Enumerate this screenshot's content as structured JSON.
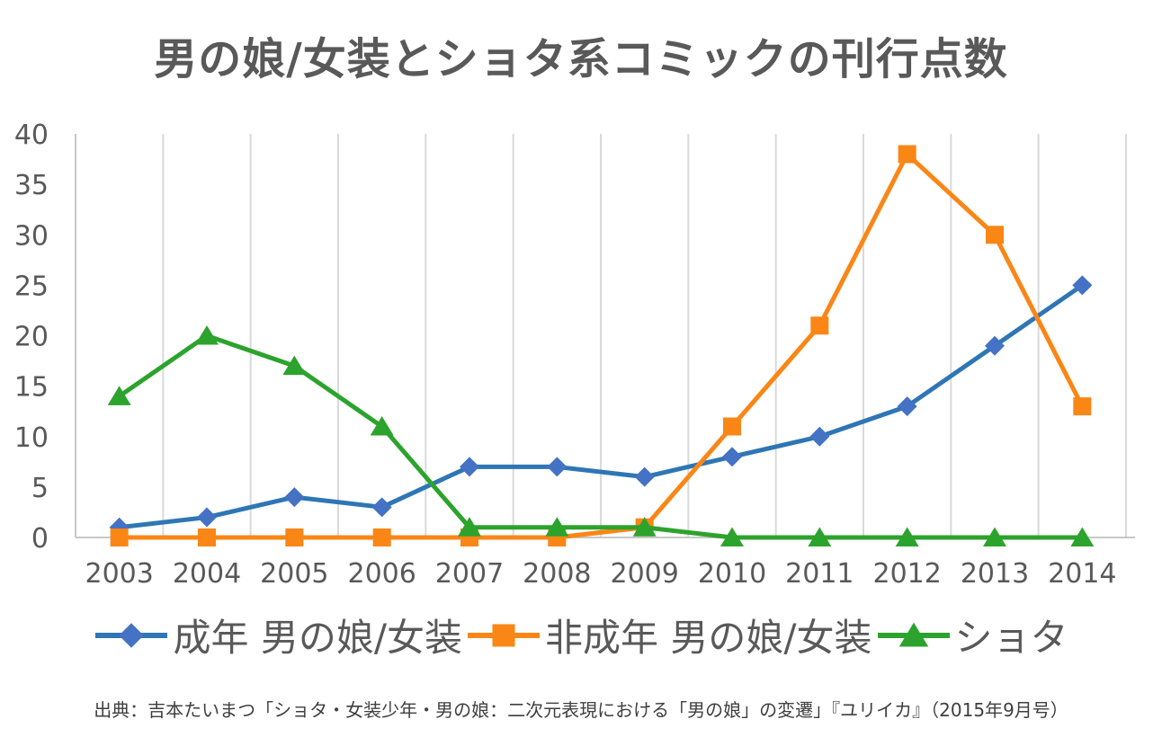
{
  "title": "男の娘/女装とショタ系コミックの刊行点数",
  "source": "出典：吉本たいまつ「ショタ・女装少年・男の娘：二次元表現における「男の娘」の変遷」『ユリイカ』（2015年9月号）",
  "colors": {
    "background": "#FFFFFF",
    "grid": "#D9D9D9",
    "axis": "#C8C8C8",
    "tick_text": "#595959",
    "title_text": "#595959",
    "legend_text": "#595959",
    "source_text": "#3F3F3F",
    "series_blue_line": "#2E76B4",
    "series_blue_marker": "#4472C4",
    "series_orange": "#FA8616",
    "series_green": "#2CA32C"
  },
  "chart_data": {
    "type": "line",
    "title": "男の娘/女装とショタ系コミックの刊行点数",
    "categories": [
      "2003",
      "2004",
      "2005",
      "2006",
      "2007",
      "2008",
      "2009",
      "2010",
      "2011",
      "2012",
      "2013",
      "2014"
    ],
    "y_ticks": [
      0,
      5,
      10,
      15,
      20,
      25,
      30,
      35,
      40
    ],
    "ylim": [
      0,
      40
    ],
    "xlabel": "",
    "ylabel": "",
    "grid": "vertical-only",
    "legend_position": "bottom",
    "series": [
      {
        "name": "成年 男の娘/女装",
        "marker": "diamond",
        "line_color": "#2E76B4",
        "marker_color": "#4472C4",
        "values": [
          1,
          2,
          4,
          3,
          7,
          7,
          6,
          8,
          10,
          13,
          19,
          25
        ]
      },
      {
        "name": "非成年 男の娘/女装",
        "marker": "square",
        "line_color": "#FA8616",
        "marker_color": "#FA8616",
        "values": [
          0,
          0,
          0,
          0,
          0,
          0,
          1,
          11,
          21,
          38,
          30,
          13
        ]
      },
      {
        "name": "ショタ",
        "marker": "triangle",
        "line_color": "#2CA32C",
        "marker_color": "#2CA32C",
        "values": [
          14,
          20,
          17,
          11,
          1,
          1,
          1,
          0,
          0,
          0,
          0,
          0
        ]
      }
    ]
  }
}
